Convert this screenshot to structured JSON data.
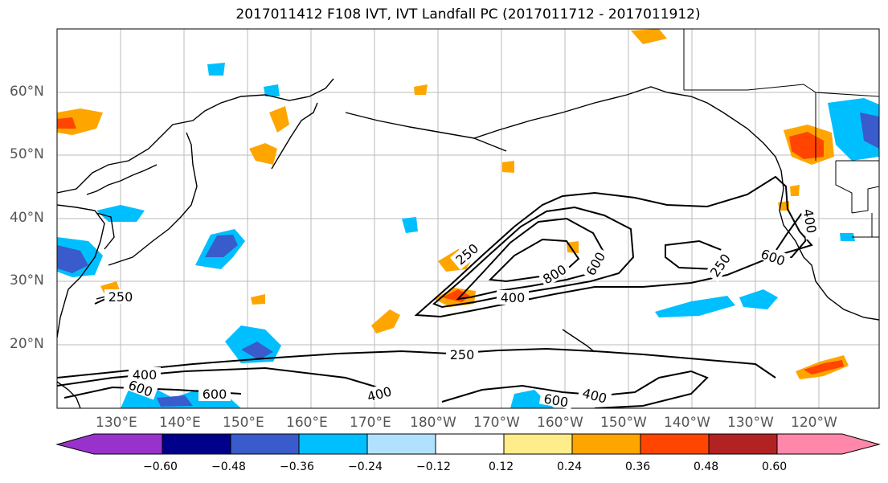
{
  "title": "2017011412 F108 IVT, IVT Landfall PC (2017011712 - 2017011912)",
  "lat_labels": [
    "60°N",
    "50°N",
    "40°N",
    "30°N",
    "20°N"
  ],
  "lon_labels": [
    "130°E",
    "140°E",
    "150°E",
    "160°E",
    "170°E",
    "180°W",
    "170°W",
    "160°W",
    "150°W",
    "140°W",
    "130°W",
    "120°W"
  ],
  "contour_labels": {
    "c250a": "250",
    "c250b": "250",
    "c250c": "250",
    "c250d": "250",
    "c400a": "400",
    "c400b": "400",
    "c400c": "400",
    "c400d": "400",
    "c400e": "400",
    "c600a": "600",
    "c600b": "600",
    "c600c": "600",
    "c600d": "600",
    "c600e": "600",
    "c800": "800"
  },
  "colorbar": {
    "ticks": [
      "−0.60",
      "−0.48",
      "−0.36",
      "−0.24",
      "−0.12",
      "0.12",
      "0.24",
      "0.36",
      "0.48",
      "0.60"
    ],
    "colors": [
      "#9932CC",
      "#00008B",
      "#3A5BCB",
      "#00BFFF",
      "#B0E2FF",
      "#FFFFFF",
      "#FFEC8B",
      "#FFA500",
      "#FF4500",
      "#B22222",
      "#FF88AA"
    ]
  }
}
